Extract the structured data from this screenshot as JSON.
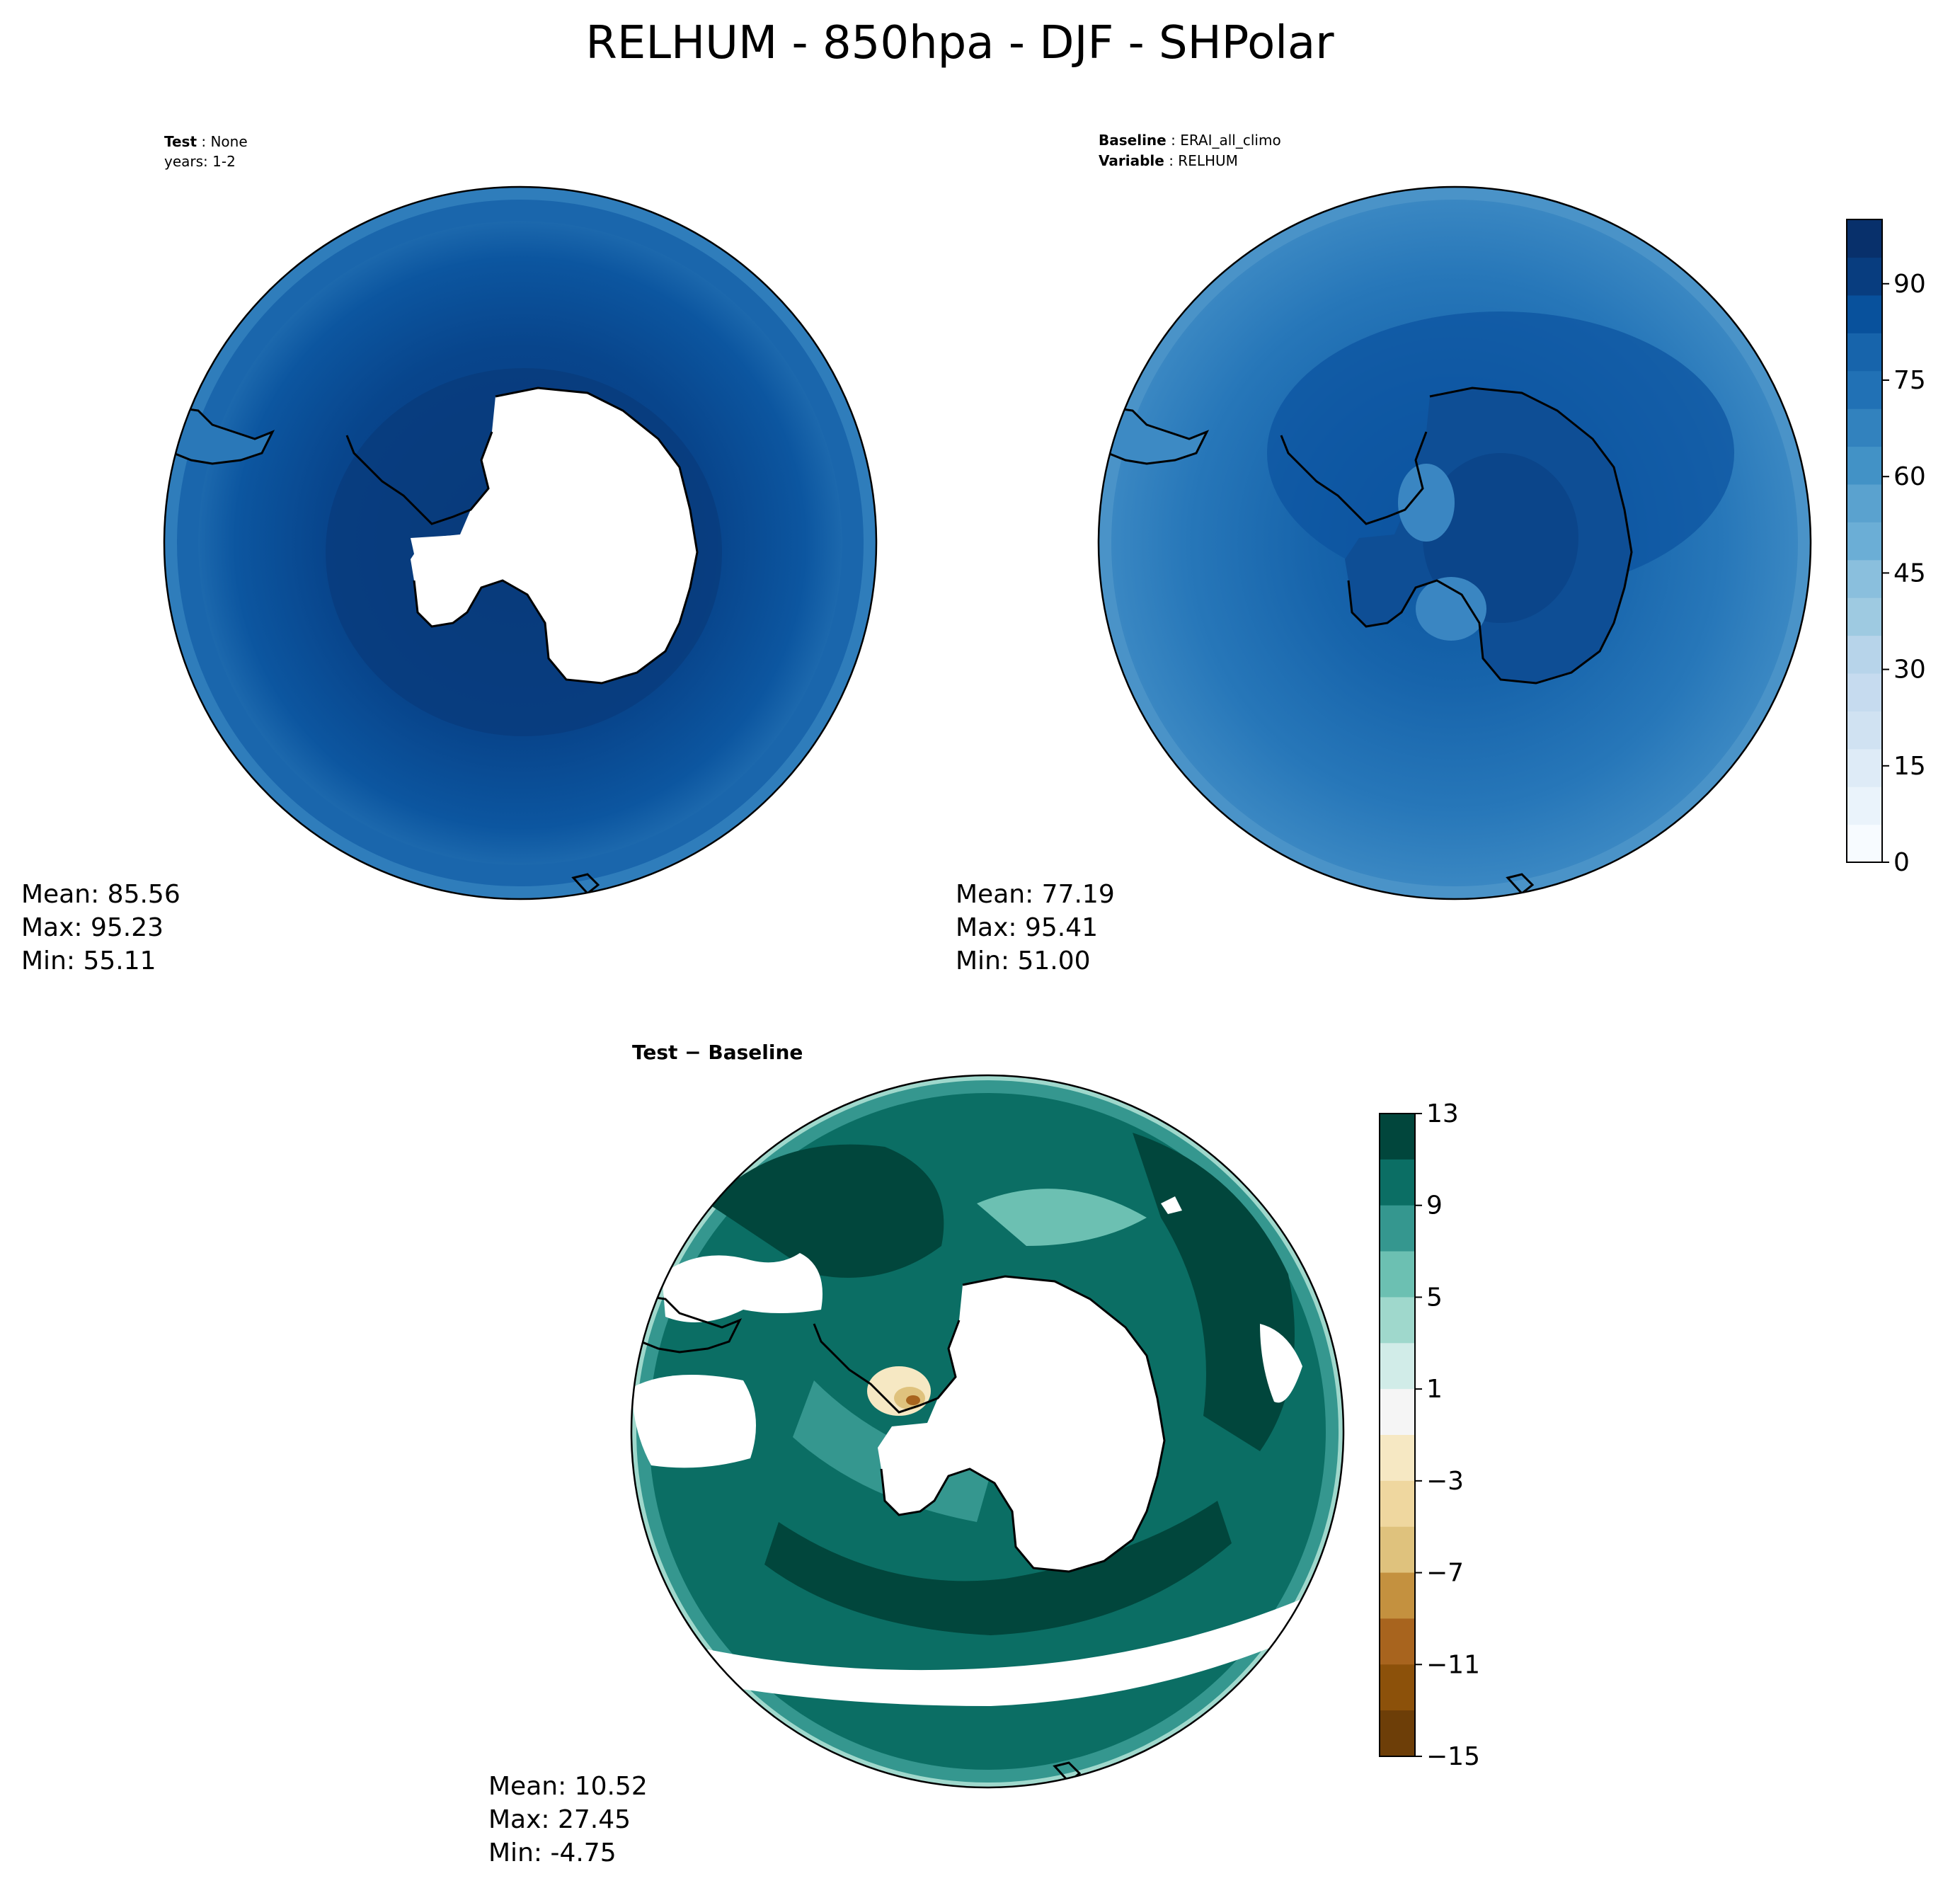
{
  "figure": {
    "title": "RELHUM - 850hpa - DJF - SHPolar"
  },
  "panels": {
    "test": {
      "label_key_1": "Test",
      "label_val_1": "None",
      "label_line_2": "years: 1-2",
      "stats": {
        "mean": "Mean: 85.56",
        "max": "Max: 95.23",
        "min": "Min: 55.11"
      }
    },
    "baseline": {
      "label_key_1": "Baseline",
      "label_val_1": "ERAI_all_climo",
      "label_key_2": "Variable",
      "label_val_2": "RELHUM",
      "stats": {
        "mean": "Mean: 77.19",
        "max": "Max: 95.41",
        "min": "Min: 51.00"
      }
    },
    "diff": {
      "title_a": "Test",
      "title_op": " − ",
      "title_b": "Baseline",
      "stats": {
        "mean": "Mean: 10.52",
        "max": "Max: 27.45",
        "min": "Min: -4.75"
      }
    }
  },
  "colorbars": {
    "relhum": {
      "colormap": "Blues",
      "ticks": [
        "0",
        "15",
        "30",
        "45",
        "60",
        "75",
        "90"
      ],
      "colors": [
        "#f7fbff",
        "#eaf3fb",
        "#deebf7",
        "#d0e2f2",
        "#c6dbef",
        "#b7d4ea",
        "#9ecae1",
        "#8abfdd",
        "#6baed6",
        "#5aa2cf",
        "#4292c6",
        "#3282be",
        "#2171b5",
        "#1764ab",
        "#08519c",
        "#083d7f",
        "#08306b"
      ]
    },
    "diff": {
      "colormap": "BrBG",
      "ticks": [
        "13",
        "9",
        "5",
        "1",
        "−3",
        "−7",
        "−11",
        "−15"
      ],
      "colors": [
        "#01463c",
        "#0b6e64",
        "#35978f",
        "#6cc0b2",
        "#9fd8cc",
        "#d1ece8",
        "#f5f5f5",
        "#f6e8c3",
        "#efd79f",
        "#dfc27d",
        "#c4913f",
        "#a8641e",
        "#8c510a",
        "#6d3e08"
      ]
    }
  }
}
